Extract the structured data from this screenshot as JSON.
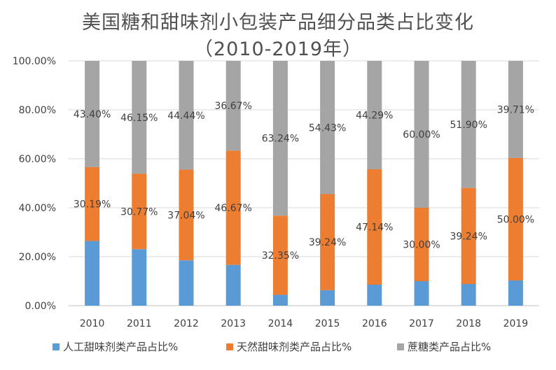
{
  "chart_data": {
    "type": "bar",
    "stacked": true,
    "title": "美国糖和甜味剂小包装产品细分品类占比变化",
    "subtitle": "（2010-2019年）",
    "categories": [
      "2010",
      "2011",
      "2012",
      "2013",
      "2014",
      "2015",
      "2016",
      "2017",
      "2018",
      "2019"
    ],
    "series": [
      {
        "name": "人工甜味剂类产品占比%",
        "color": "#5b9bd5",
        "values": [
          26.41,
          23.08,
          18.52,
          16.66,
          4.41,
          6.33,
          8.57,
          10.0,
          8.86,
          10.29
        ],
        "labels": [
          "",
          "",
          "",
          "",
          "",
          "",
          "",
          "",
          "",
          ""
        ]
      },
      {
        "name": "天然甜味剂类产品占比%",
        "color": "#ed7d31",
        "values": [
          30.19,
          30.77,
          37.04,
          46.67,
          32.35,
          39.24,
          47.14,
          30.0,
          39.24,
          50.0
        ],
        "labels": [
          "30.19%",
          "30.77%",
          "37.04%",
          "46.67%",
          "32.35%",
          "39.24%",
          "47.14%",
          "30.00%",
          "39.24%",
          "50.00%"
        ]
      },
      {
        "name": "蔗糖类产品占比%",
        "color": "#a5a5a5",
        "values": [
          43.4,
          46.15,
          44.44,
          36.67,
          63.24,
          54.43,
          44.29,
          60.0,
          51.9,
          39.71
        ],
        "labels": [
          "43.40%",
          "46.15%",
          "44.44%",
          "36.67%",
          "63.24%",
          "54.43%",
          "44.29%",
          "60.00%",
          "51.90%",
          "39.71%"
        ]
      }
    ],
    "yticks": [
      "0.00%",
      "20.00%",
      "40.00%",
      "60.00%",
      "80.00%",
      "100.00%"
    ],
    "ylim": [
      0,
      100
    ],
    "grid": true,
    "legend": "bottom"
  }
}
